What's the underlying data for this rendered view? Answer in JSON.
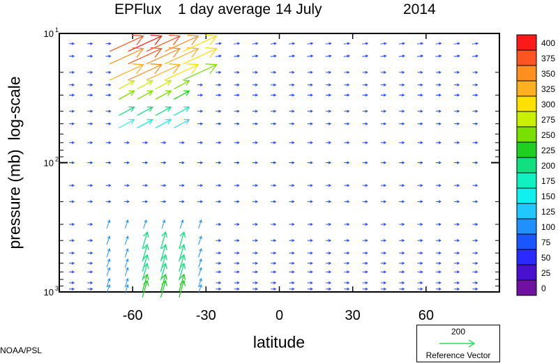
{
  "title_parts": {
    "product": "EPFlux",
    "period": "1 day average",
    "date": "14 July",
    "year": "2014"
  },
  "credit": "NOAA/PSL",
  "colors": {
    "vector_default": "#2244ff",
    "frame": "#000000"
  },
  "colorbar": {
    "levels": [
      "400",
      "375",
      "350",
      "325",
      "300",
      "275",
      "250",
      "225",
      "200",
      "175",
      "150",
      "125",
      "100",
      "75",
      "50",
      "25",
      "0"
    ],
    "colors": [
      "#ff1a1a",
      "#ff5522",
      "#ff9020",
      "#ffb020",
      "#ffe000",
      "#c8f000",
      "#7ae000",
      "#20d020",
      "#10e080",
      "#10f0c0",
      "#10f0f0",
      "#20c8ff",
      "#2090ff",
      "#1a55ff",
      "#2a2aff",
      "#4a10d0",
      "#7010a0"
    ]
  },
  "reference_vector": {
    "value": "200",
    "label": "Reference Vector",
    "color": "#22e060"
  },
  "chart_data": {
    "type": "vector_field",
    "title": "EPFlux  1 day average  14 July      2014",
    "xlabel": "latitude",
    "ylabel": "pressure (mb)  log-scale",
    "x_ticks": [
      -60,
      -30,
      0,
      30,
      60
    ],
    "y_ticks": [
      "10^1",
      "10^2",
      "10^3"
    ],
    "xlim": [
      -90,
      90
    ],
    "ylim_mb": [
      1000,
      10
    ],
    "y_scale": "log",
    "colorbar_units": "magnitude",
    "features": [
      {
        "region": "60S-40S, 10-30 mb",
        "magnitude": "up to ~400",
        "direction": "upward-poleward/equatorward"
      },
      {
        "region": "65S-30S, 400-1000 mb",
        "magnitude": "~150-250",
        "direction": "upward"
      },
      {
        "region": "elsewhere",
        "magnitude": "~0-50",
        "direction": "mostly weak"
      }
    ]
  }
}
